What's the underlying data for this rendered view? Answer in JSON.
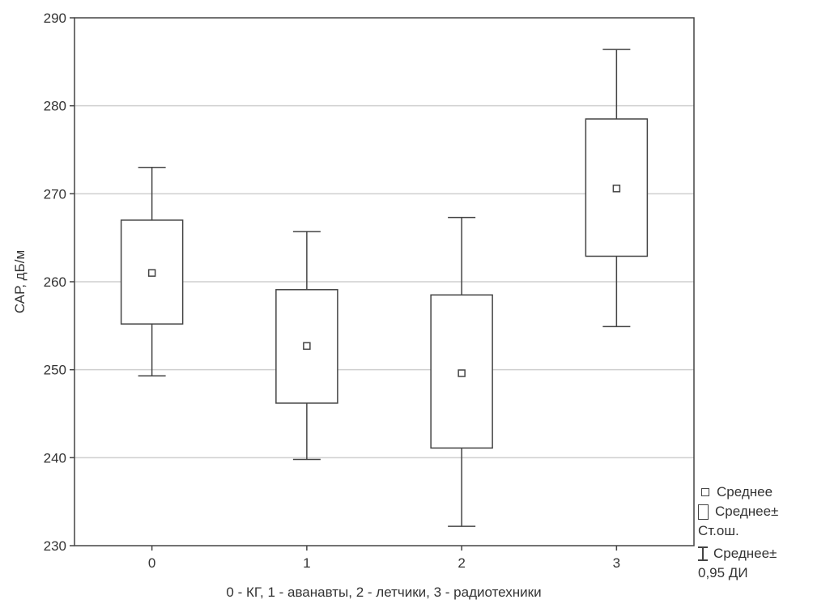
{
  "chart_data": {
    "type": "box",
    "xlabel": "0 - КГ, 1 - аванавты, 2 - летчики, 3 - радиотехники",
    "ylabel": "САР, дБ/м",
    "ylim": [
      230,
      290
    ],
    "yticks": [
      230,
      240,
      250,
      260,
      270,
      280,
      290
    ],
    "grid": true,
    "categories": [
      "0",
      "1",
      "2",
      "3"
    ],
    "groups": [
      {
        "category": "0",
        "mean": 261.0,
        "se_low": 255.2,
        "se_high": 267.0,
        "ci_low": 249.3,
        "ci_high": 273.0
      },
      {
        "category": "1",
        "mean": 252.7,
        "se_low": 246.2,
        "se_high": 259.1,
        "ci_low": 239.8,
        "ci_high": 265.7
      },
      {
        "category": "2",
        "mean": 249.6,
        "se_low": 241.1,
        "se_high": 258.5,
        "ci_low": 232.2,
        "ci_high": 267.3
      },
      {
        "category": "3",
        "mean": 270.6,
        "se_low": 262.9,
        "se_high": 278.5,
        "ci_low": 254.9,
        "ci_high": 286.4
      }
    ],
    "legend": {
      "position": "bottom-right",
      "mean": "Среднее",
      "se_line1": "Среднее±",
      "se_line2": "Ст.ош.",
      "ci_line1": "Среднее±",
      "ci_line2": "0,95 ДИ"
    }
  }
}
